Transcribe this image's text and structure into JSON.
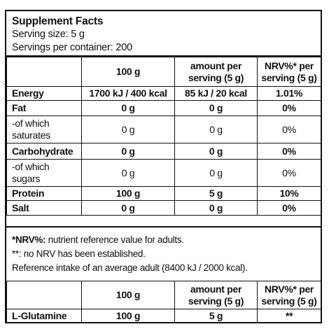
{
  "header": {
    "title": "Supplement Facts",
    "serving_size": "Serving size: 5 g",
    "servings_per_container": "Servings per container: 200"
  },
  "columns": [
    "",
    "100 g",
    "amount per serving (5 g)",
    "NRV%* per serving (5 g)"
  ],
  "columns_lines": {
    "c2": [
      "amount per",
      "serving (5 g)"
    ],
    "c3": [
      "NRV%* per",
      "serving (5 g)"
    ]
  },
  "rows": [
    {
      "name": "Energy",
      "per100": "1700 kJ / 400 kcal",
      "serving": "85 kJ / 20 kcal",
      "nrv": "1.01%",
      "bold": true
    },
    {
      "name": "Fat",
      "per100": "0 g",
      "serving": "0 g",
      "nrv": "0%",
      "bold": true
    },
    {
      "name_lines": [
        "-of which",
        "saturates"
      ],
      "per100": "0 g",
      "serving": "0 g",
      "nrv": "0%",
      "bold": false
    },
    {
      "name": "Carbohydrate",
      "per100": "0 g",
      "serving": "0 g",
      "nrv": "0%",
      "bold": true
    },
    {
      "name_lines": [
        "-of which",
        "sugars"
      ],
      "per100": "0 g",
      "serving": "0 g",
      "nrv": "0%",
      "bold": false
    },
    {
      "name": "Protein",
      "per100": "100 g",
      "serving": "5 g",
      "nrv": "10%",
      "bold": true
    },
    {
      "name": "Salt",
      "per100": "0 g",
      "serving": "0 g",
      "nrv": "0%",
      "bold": true
    }
  ],
  "notes": {
    "nrv_label": "*NRV%:",
    "nrv_text": " nutrient reference value for adults.",
    "no_nrv": "**: no NRV has been established.",
    "reference": "Reference intake of an average adult (8400 kJ / 2000 kcal)."
  },
  "bottom_table": {
    "columns": [
      "",
      "100 g",
      "amount per serving (5 g)",
      "NRV%* per serving (5 g)"
    ],
    "row": {
      "name": "L-Glutamine",
      "per100": "100 g",
      "serving": "5 g",
      "nrv": "**"
    }
  }
}
